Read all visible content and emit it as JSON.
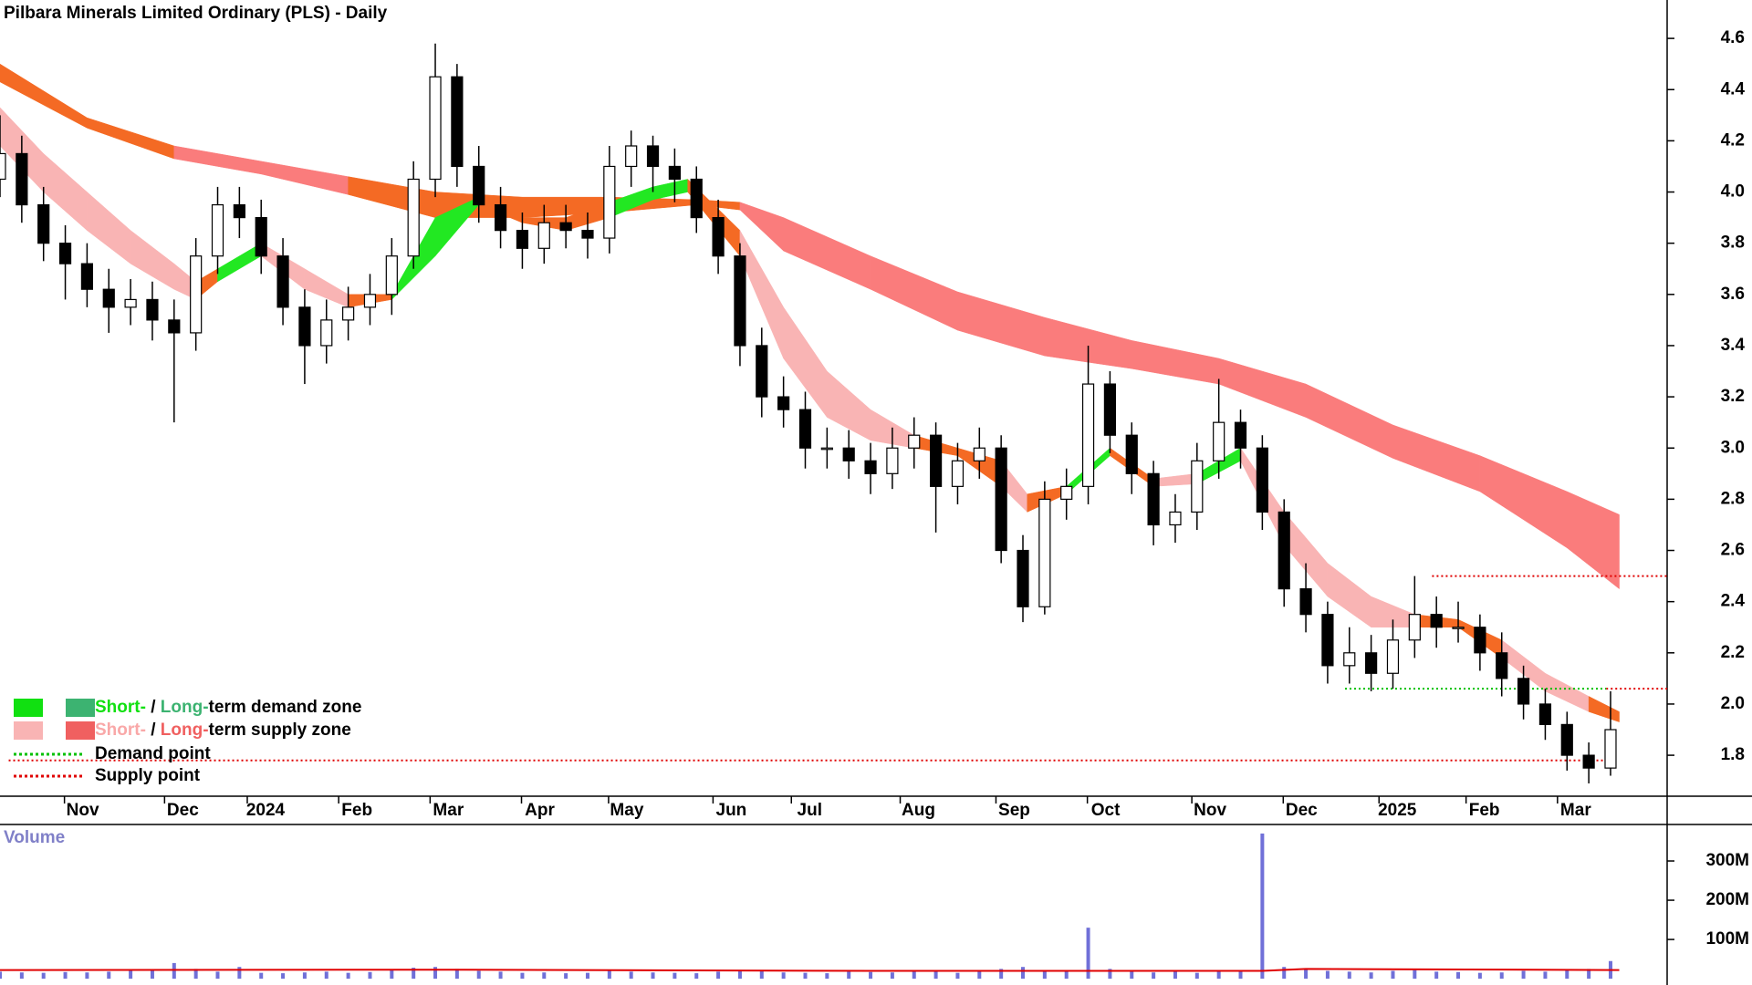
{
  "chart_data": {
    "type": "candlestick",
    "title": "Pilbara Minerals Limited Ordinary (PLS) - Daily",
    "x": [
      0,
      5,
      10,
      15,
      20,
      25,
      30,
      35,
      40,
      45,
      50,
      55,
      60,
      65,
      70,
      75,
      80,
      85,
      90,
      95,
      100,
      105,
      110,
      115,
      120,
      125,
      130,
      135,
      140,
      145,
      150,
      155,
      160,
      165,
      170,
      175,
      180,
      185,
      190,
      195,
      200,
      205,
      210,
      215,
      220,
      225,
      230,
      235,
      240,
      245,
      250,
      255,
      260,
      265,
      270,
      275,
      280,
      285,
      290,
      295,
      300,
      305,
      310,
      315,
      320,
      325,
      330,
      335,
      340,
      345,
      350,
      355,
      360,
      365,
      370
    ],
    "open": [
      4.05,
      4.15,
      3.95,
      3.8,
      3.72,
      3.62,
      3.55,
      3.58,
      3.5,
      3.45,
      3.75,
      3.95,
      3.9,
      3.75,
      3.55,
      3.4,
      3.5,
      3.55,
      3.6,
      3.75,
      4.05,
      4.45,
      4.1,
      3.95,
      3.85,
      3.78,
      3.88,
      3.85,
      3.82,
      4.1,
      4.18,
      4.1,
      4.05,
      3.9,
      3.75,
      3.4,
      3.2,
      3.15,
      3.0,
      3.0,
      2.95,
      2.9,
      3.0,
      3.05,
      2.85,
      2.95,
      3.0,
      2.6,
      2.38,
      2.8,
      2.85,
      3.25,
      3.05,
      2.9,
      2.7,
      2.75,
      2.95,
      3.1,
      3.0,
      2.75,
      2.45,
      2.35,
      2.15,
      2.2,
      2.12,
      2.25,
      2.35,
      2.3,
      2.3,
      2.2,
      2.1,
      2.0,
      1.92,
      1.8,
      1.75
    ],
    "high": [
      4.3,
      4.22,
      4.02,
      3.87,
      3.8,
      3.7,
      3.66,
      3.65,
      3.58,
      3.82,
      4.02,
      4.02,
      3.97,
      3.82,
      3.62,
      3.58,
      3.63,
      3.68,
      3.82,
      4.12,
      4.58,
      4.5,
      4.18,
      4.02,
      3.92,
      3.95,
      3.95,
      3.92,
      4.18,
      4.24,
      4.22,
      4.17,
      4.1,
      3.97,
      3.8,
      3.47,
      3.28,
      3.22,
      3.08,
      3.07,
      3.02,
      3.08,
      3.12,
      3.1,
      3.02,
      3.08,
      3.05,
      2.66,
      2.87,
      2.92,
      3.4,
      3.3,
      3.1,
      2.95,
      2.82,
      3.02,
      3.27,
      3.15,
      3.05,
      2.8,
      2.55,
      2.4,
      2.3,
      2.27,
      2.33,
      2.5,
      2.42,
      2.4,
      2.35,
      2.28,
      2.15,
      2.06,
      1.97,
      1.85,
      2.05
    ],
    "low": [
      3.98,
      3.88,
      3.73,
      3.58,
      3.55,
      3.45,
      3.48,
      3.42,
      3.1,
      3.38,
      3.68,
      3.82,
      3.68,
      3.48,
      3.25,
      3.33,
      3.42,
      3.48,
      3.52,
      3.7,
      3.98,
      4.02,
      3.88,
      3.78,
      3.7,
      3.72,
      3.78,
      3.74,
      3.76,
      4.02,
      4.0,
      3.96,
      3.84,
      3.68,
      3.32,
      3.12,
      3.08,
      2.92,
      2.92,
      2.88,
      2.82,
      2.84,
      2.92,
      2.67,
      2.78,
      2.88,
      2.55,
      2.32,
      2.35,
      2.72,
      2.78,
      2.98,
      2.82,
      2.62,
      2.63,
      2.68,
      2.88,
      2.92,
      2.68,
      2.38,
      2.28,
      2.08,
      2.08,
      2.05,
      2.06,
      2.18,
      2.22,
      2.24,
      2.13,
      2.03,
      1.94,
      1.86,
      1.74,
      1.69,
      1.72
    ],
    "close": [
      4.15,
      3.95,
      3.8,
      3.72,
      3.62,
      3.55,
      3.58,
      3.5,
      3.45,
      3.75,
      3.95,
      3.9,
      3.75,
      3.55,
      3.4,
      3.5,
      3.55,
      3.6,
      3.75,
      4.05,
      4.45,
      4.1,
      3.95,
      3.85,
      3.78,
      3.88,
      3.85,
      3.82,
      4.1,
      4.18,
      4.1,
      4.05,
      3.9,
      3.75,
      3.4,
      3.2,
      3.15,
      3.0,
      3.0,
      2.95,
      2.9,
      3.0,
      3.05,
      2.85,
      2.95,
      3.0,
      2.6,
      2.38,
      2.8,
      2.85,
      3.25,
      3.05,
      2.9,
      2.7,
      2.75,
      2.95,
      3.1,
      3.0,
      2.75,
      2.45,
      2.35,
      2.15,
      2.2,
      2.12,
      2.25,
      2.35,
      2.3,
      2.3,
      2.2,
      2.1,
      2.0,
      1.92,
      1.8,
      1.75,
      1.9
    ],
    "xlim": [
      0,
      383
    ],
    "xticks": [
      {
        "value": 19,
        "label": "Nov"
      },
      {
        "value": 42,
        "label": "Dec"
      },
      {
        "value": 61,
        "label": "2024"
      },
      {
        "value": 82,
        "label": "Feb"
      },
      {
        "value": 103,
        "label": "Mar"
      },
      {
        "value": 124,
        "label": "Apr"
      },
      {
        "value": 144,
        "label": "May"
      },
      {
        "value": 168,
        "label": "Jun"
      },
      {
        "value": 186,
        "label": "Jul"
      },
      {
        "value": 211,
        "label": "Aug"
      },
      {
        "value": 233,
        "label": "Sep"
      },
      {
        "value": 254,
        "label": "Oct"
      },
      {
        "value": 278,
        "label": "Nov"
      },
      {
        "value": 299,
        "label": "Dec"
      },
      {
        "value": 321,
        "label": "2025"
      },
      {
        "value": 341,
        "label": "Feb"
      },
      {
        "value": 362,
        "label": "Mar"
      }
    ],
    "ylim": [
      1.64,
      4.75
    ],
    "yticks": [
      1.8,
      {
        "value": 2,
        "label": "2.0"
      },
      2.2,
      2.4,
      2.6,
      2.8,
      {
        "value": 3,
        "label": "3.0"
      },
      3.2,
      3.4,
      3.6,
      3.8,
      {
        "value": 4,
        "label": "4.0"
      },
      4.2,
      4.4,
      4.6
    ],
    "bands": [
      {
        "x": [
          0,
          20,
          40,
          60,
          80,
          100,
          120,
          140,
          160,
          170,
          180,
          200,
          220,
          240,
          260,
          280,
          300,
          320,
          340,
          360,
          372
        ],
        "upper": [
          4.5,
          4.29,
          4.18,
          4.12,
          4.06,
          4.0,
          3.98,
          3.98,
          3.97,
          3.96,
          3.9,
          3.75,
          3.61,
          3.51,
          3.42,
          3.35,
          3.25,
          3.09,
          2.97,
          2.83,
          2.74
        ],
        "lower": [
          4.43,
          4.25,
          4.13,
          4.07,
          3.99,
          3.9,
          3.9,
          3.92,
          3.95,
          3.93,
          3.77,
          3.62,
          3.46,
          3.36,
          3.31,
          3.25,
          3.12,
          2.96,
          2.83,
          2.61,
          2.45
        ],
        "colors": [
          "#f46a24",
          "#f46a24",
          "#fa7c7c",
          "#fa7c7c",
          "#f46a24",
          "#f46a24",
          "#f46a24",
          "#f46a24",
          "#f46a24",
          "#fa7c7c",
          "#fa7c7c",
          "#fa7c7c",
          "#fa7c7c",
          "#fa7c7c",
          "#fa7c7c",
          "#fa7c7c",
          "#fa7c7c",
          "#fa7c7c",
          "#fa7c7c",
          "#fa7c7c"
        ]
      },
      {
        "x": [
          0,
          10,
          20,
          30,
          40,
          45,
          50,
          60,
          70,
          80,
          90,
          100,
          110,
          120,
          130,
          140,
          150,
          158,
          170,
          180,
          190,
          200,
          210,
          220,
          230,
          236,
          245,
          255,
          265,
          275,
          285,
          295,
          305,
          315,
          325,
          335,
          345,
          355,
          365,
          372
        ],
        "upper": [
          4.33,
          4.15,
          4.0,
          3.85,
          3.72,
          3.65,
          3.7,
          3.8,
          3.7,
          3.6,
          3.6,
          3.9,
          3.98,
          3.9,
          3.9,
          3.96,
          4.02,
          4.05,
          3.85,
          3.55,
          3.3,
          3.15,
          3.05,
          3.0,
          2.95,
          2.82,
          2.85,
          3.0,
          2.88,
          2.9,
          3.0,
          2.75,
          2.55,
          2.42,
          2.35,
          2.33,
          2.25,
          2.12,
          2.03,
          1.97
        ],
        "lower": [
          4.18,
          4.0,
          3.85,
          3.72,
          3.62,
          3.58,
          3.65,
          3.75,
          3.62,
          3.55,
          3.58,
          3.75,
          3.95,
          3.88,
          3.85,
          3.9,
          3.97,
          4.0,
          3.75,
          3.35,
          3.12,
          3.03,
          3.0,
          2.97,
          2.85,
          2.75,
          2.82,
          2.97,
          2.85,
          2.86,
          2.95,
          2.62,
          2.42,
          2.3,
          2.3,
          2.3,
          2.18,
          2.05,
          1.97,
          1.93
        ],
        "colors": [
          "#f9b4b4",
          "#f9b4b4",
          "#f9b4b4",
          "#f9b4b4",
          "#f9b4b4",
          "#f46a24",
          "#22e822",
          "#f9b4b4",
          "#f9b4b4",
          "#f46a24",
          "#22e822",
          "#22e822",
          "#f46a24",
          "#f46a24",
          "#f46a24",
          "#22e822",
          "#22e822",
          "#f46a24",
          "#f9b4b4",
          "#f9b4b4",
          "#f9b4b4",
          "#f9b4b4",
          "#f46a24",
          "#f46a24",
          "#f9b4b4",
          "#f46a24",
          "#22e822",
          "#f46a24",
          "#f9b4b4",
          "#22e822",
          "#f9b4b4",
          "#f9b4b4",
          "#f9b4b4",
          "#f9b4b4",
          "#f46a24",
          "#f46a24",
          "#f9b4b4",
          "#f9b4b4",
          "#f46a24"
        ]
      }
    ],
    "levels": [
      {
        "color": "#e00000",
        "value": 2.5,
        "x": [
          329,
          383
        ]
      },
      {
        "color": "#e00000",
        "value": 2.06,
        "x": [
          369,
          383
        ]
      },
      {
        "color": "#00c000",
        "value": 2.06,
        "x": [
          309,
          369
        ]
      },
      {
        "color": "#e00000",
        "value": 1.78,
        "x": [
          2,
          369
        ]
      }
    ],
    "legend": [
      {
        "swatches": [
          "#11e011",
          "#3cb371"
        ],
        "parts": [
          {
            "text": "Short-",
            "color": "#11e011"
          },
          {
            "text": " / ",
            "color": "#000000"
          },
          {
            "text": "Long-",
            "color": "#3cb371"
          },
          {
            "text": "term demand zone",
            "color": "#000000"
          }
        ]
      },
      {
        "swatches": [
          "#f9b4b4",
          "#f06060"
        ],
        "parts": [
          {
            "text": "Short-",
            "color": "#f9a8a8"
          },
          {
            "text": " / ",
            "color": "#000000"
          },
          {
            "text": "Long-",
            "color": "#f06060"
          },
          {
            "text": "term supply zone",
            "color": "#000000"
          }
        ]
      },
      {
        "line": "#00c000",
        "parts": [
          {
            "text": "Demand point",
            "color": "#000000"
          }
        ]
      },
      {
        "line": "#e00000",
        "parts": [
          {
            "text": "Supply point",
            "color": "#000000"
          }
        ]
      }
    ],
    "volume": {
      "title": "Volume",
      "color": "#7070d8",
      "values": [
        18,
        16,
        15,
        17,
        16,
        18,
        20,
        22,
        40,
        25,
        18,
        30,
        15,
        14,
        16,
        18,
        15,
        17,
        22,
        28,
        30,
        25,
        20,
        18,
        15,
        16,
        14,
        15,
        20,
        18,
        16,
        15,
        14,
        18,
        22,
        20,
        16,
        15,
        14,
        18,
        17,
        16,
        20,
        18,
        15,
        22,
        25,
        30,
        20,
        18,
        130,
        25,
        20,
        16,
        18,
        15,
        20,
        22,
        370,
        30,
        25,
        20,
        18,
        16,
        20,
        22,
        18,
        17,
        15,
        16,
        20,
        18,
        22,
        25,
        45
      ],
      "average": {
        "color": "#e00000",
        "x": [
          0,
          100,
          200,
          290,
          300,
          372
        ],
        "values": [
          22,
          23,
          20,
          20,
          25,
          22
        ]
      },
      "ylim": [
        -16,
        393
      ],
      "yticks": [
        {
          "value": 100,
          "label": "100M"
        },
        {
          "value": 200,
          "label": "200M"
        },
        {
          "value": 300,
          "label": "300M"
        }
      ]
    }
  }
}
